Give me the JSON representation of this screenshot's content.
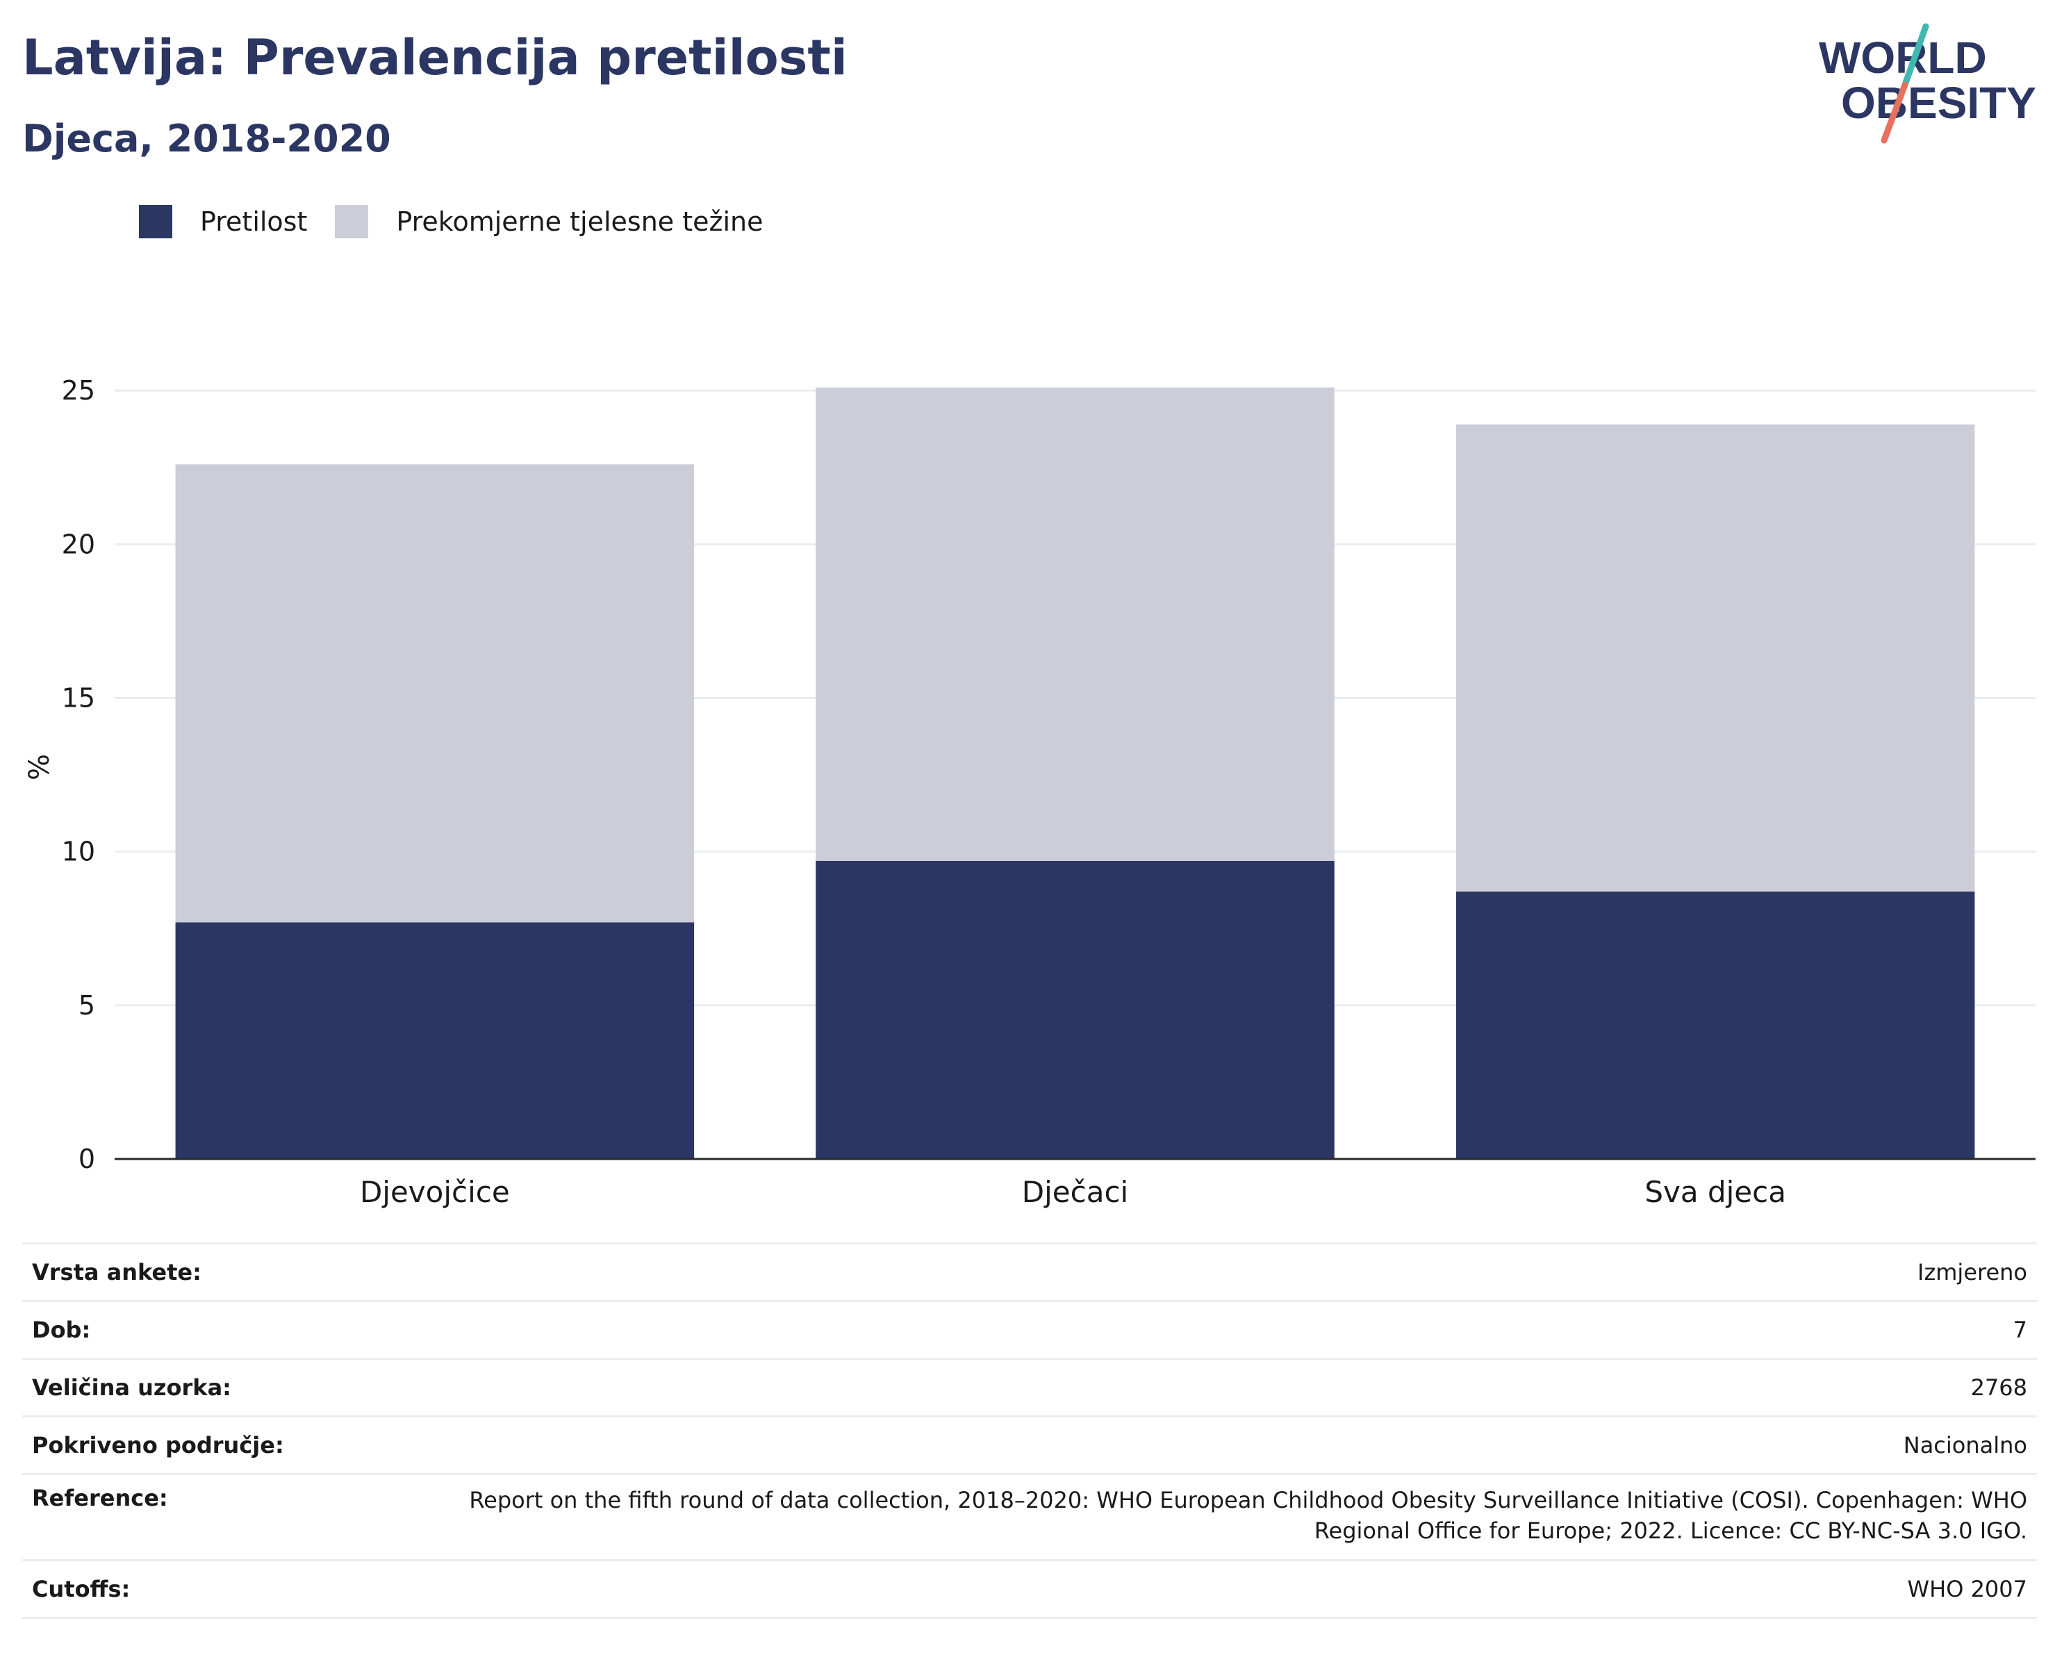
{
  "header": {
    "title": "Latvija: Prevalencija pretilosti",
    "subtitle": "Djeca, 2018-2020"
  },
  "logo": {
    "line1": "WORLD",
    "line2": "OBESITY",
    "slash_colors": [
      "#3fb8b0",
      "#e8705e"
    ]
  },
  "colors": {
    "obesity": "#2b3663",
    "overweight": "#cbcdd8",
    "title": "#2b3663",
    "grid": "#e9ecf0",
    "axis": "#2a2a2a"
  },
  "legend": [
    {
      "label": "Pretilost",
      "color": "#2b3663"
    },
    {
      "label": "Prekomjerne tjelesne težine",
      "color": "#cbcdd8"
    }
  ],
  "chart_data": {
    "type": "bar",
    "stacked": true,
    "categories": [
      "Djevojčice",
      "Dječaci",
      "Sva djeca"
    ],
    "series": [
      {
        "name": "Pretilost",
        "values": [
          7.7,
          9.7,
          8.7
        ]
      },
      {
        "name": "Prekomjerne tjelesne težine",
        "values": [
          14.9,
          15.4,
          15.2
        ]
      }
    ],
    "ylabel": "%",
    "ylim": [
      0,
      25.5
    ],
    "yticks": [
      0,
      5,
      10,
      15,
      20,
      25
    ],
    "grid": true,
    "legend_position": "top-left"
  },
  "info_table": [
    {
      "label": "Vrsta ankete:",
      "value": "Izmjereno"
    },
    {
      "label": "Dob:",
      "value": "7"
    },
    {
      "label": "Veličina uzorka:",
      "value": "2768"
    },
    {
      "label": "Pokriveno područje:",
      "value": "Nacionalno"
    },
    {
      "label": "Reference:",
      "value": "Report on the fifth round of data collection, 2018–2020: WHO European Childhood Obesity Surveillance Initiative (COSI). Copenhagen: WHO Regional Office for Europe; 2022. Licence: CC BY-NC-SA 3.0 IGO."
    },
    {
      "label": "Cutoffs:",
      "value": "WHO 2007"
    }
  ]
}
